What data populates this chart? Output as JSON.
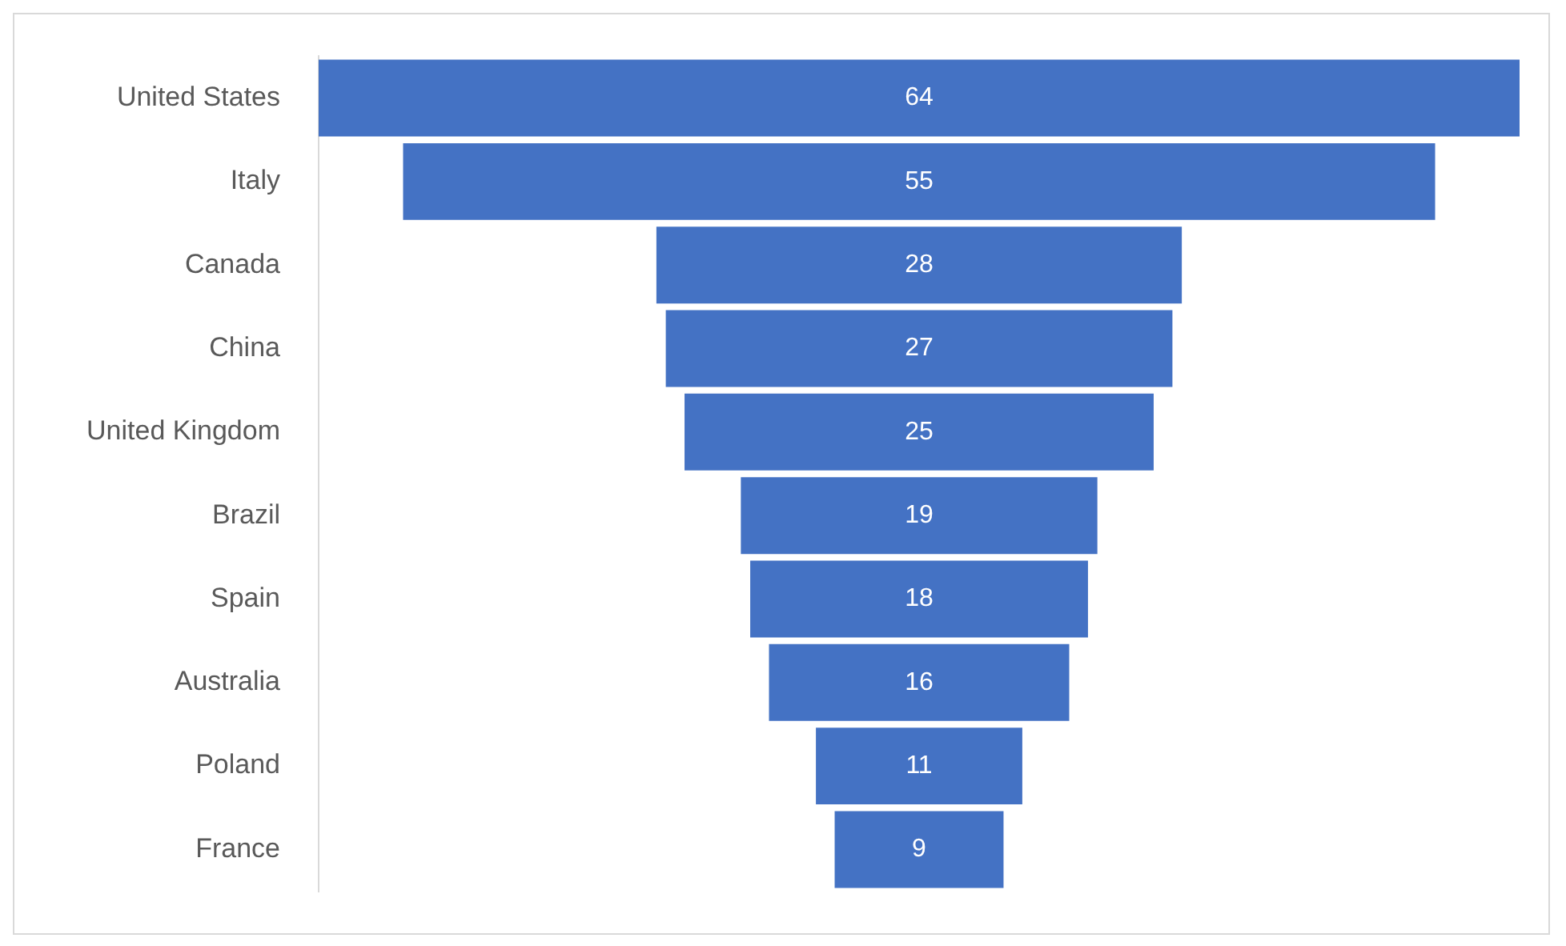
{
  "chart_data": {
    "type": "other",
    "categories": [
      "United States",
      "Italy",
      "Canada",
      "China",
      "United Kingdom",
      "Brazil",
      "Spain",
      "Australia",
      "Poland",
      "France"
    ],
    "values": [
      64,
      55,
      28,
      27,
      25,
      19,
      18,
      16,
      11,
      9
    ],
    "color": "#4472c4",
    "data_labels": true
  }
}
